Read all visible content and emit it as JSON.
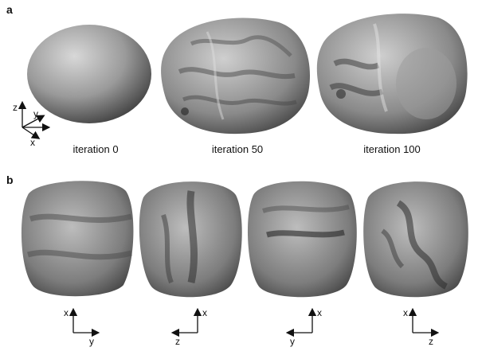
{
  "panel_a": {
    "letter": "a",
    "captions": [
      "iteration 0",
      "iteration 50",
      "iteration 100"
    ],
    "axes": {
      "z": "z",
      "y": "y",
      "x": "x"
    }
  },
  "panel_b": {
    "letter": "b",
    "views": [
      {
        "vertical": "x",
        "horizontal": "y"
      },
      {
        "vertical": "x",
        "horizontal": "z"
      },
      {
        "vertical": "x",
        "horizontal": "y"
      },
      {
        "vertical": "x",
        "horizontal": "z"
      }
    ]
  },
  "colors": {
    "surface_light": "#c9c9c9",
    "surface_dark": "#3a3a3a",
    "ink": "#111111"
  }
}
